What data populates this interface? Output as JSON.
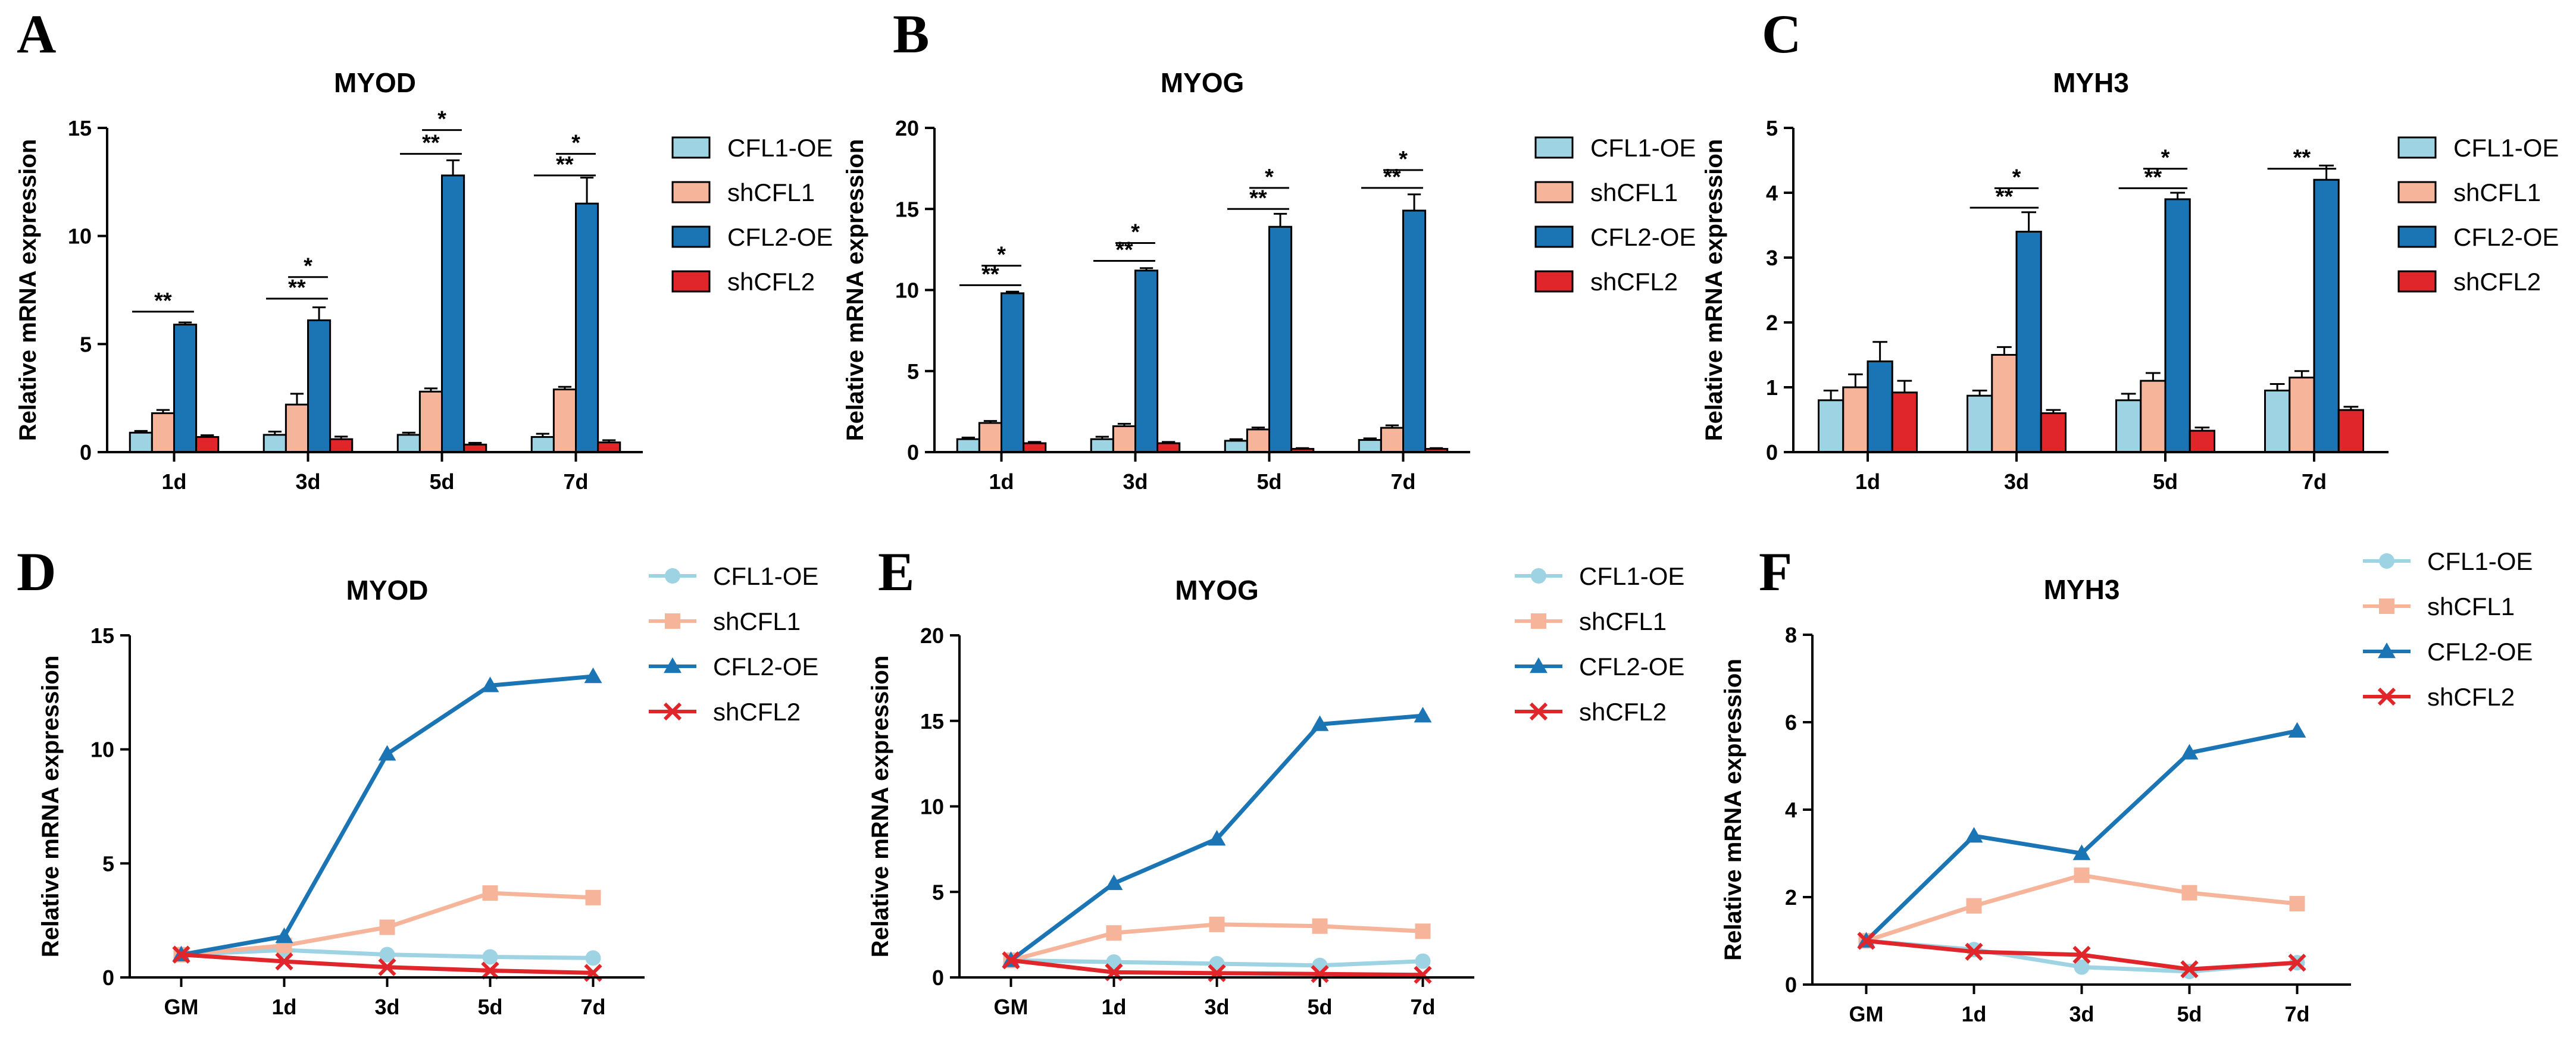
{
  "chart_data": [
    {
      "panel": "A",
      "type": "bar",
      "title": "MYOD",
      "ylabel": "Relative mRNA expression",
      "categories": [
        "1d",
        "3d",
        "5d",
        "7d"
      ],
      "ylim": [
        0,
        15
      ],
      "yticks": [
        0,
        5,
        10,
        15
      ],
      "series": [
        {
          "name": "CFL1-OE",
          "values": [
            0.9,
            0.8,
            0.8,
            0.7
          ],
          "errors": [
            0.08,
            0.15,
            0.1,
            0.15
          ],
          "color": "#9dd3e2"
        },
        {
          "name": "shCFL1",
          "values": [
            1.8,
            2.2,
            2.8,
            2.9
          ],
          "errors": [
            0.15,
            0.5,
            0.15,
            0.12
          ],
          "color": "#f6b49a"
        },
        {
          "name": "CFL2-OE",
          "values": [
            5.9,
            6.1,
            12.8,
            11.5
          ],
          "errors": [
            0.1,
            0.6,
            0.7,
            1.2
          ],
          "color": "#1b75b4"
        },
        {
          "name": "shCFL2",
          "values": [
            0.7,
            0.6,
            0.35,
            0.45
          ],
          "errors": [
            0.08,
            0.12,
            0.08,
            0.1
          ],
          "color": "#e0262a"
        }
      ],
      "annotations": [
        {
          "category": "1d",
          "from": "CFL1-OE",
          "to": "CFL2-OE",
          "level": 6.5,
          "label": "**"
        },
        {
          "category": "3d",
          "from": "CFL1-OE",
          "to": "CFL2-OE",
          "level": 7.1,
          "label": "**"
        },
        {
          "category": "3d",
          "from": "shCFL1",
          "to": "CFL2-OE",
          "level": 8.1,
          "label": "*"
        },
        {
          "category": "5d",
          "from": "CFL1-OE",
          "to": "CFL2-OE",
          "level": 13.8,
          "label": "**"
        },
        {
          "category": "5d",
          "from": "shCFL1",
          "to": "CFL2-OE",
          "level": 14.9,
          "label": "*"
        },
        {
          "category": "7d",
          "from": "CFL1-OE",
          "to": "CFL2-OE",
          "level": 12.8,
          "label": "**"
        },
        {
          "category": "7d",
          "from": "shCFL1",
          "to": "CFL2-OE",
          "level": 13.8,
          "label": "*"
        }
      ]
    },
    {
      "panel": "B",
      "type": "bar",
      "title": "MYOG",
      "ylabel": "Relative mRNA expression",
      "categories": [
        "1d",
        "3d",
        "5d",
        "7d"
      ],
      "ylim": [
        0,
        20
      ],
      "yticks": [
        0,
        5,
        10,
        15,
        20
      ],
      "series": [
        {
          "name": "CFL1-OE",
          "values": [
            0.8,
            0.8,
            0.7,
            0.75
          ],
          "errors": [
            0.1,
            0.15,
            0.1,
            0.1
          ],
          "color": "#9dd3e2"
        },
        {
          "name": "shCFL1",
          "values": [
            1.8,
            1.6,
            1.4,
            1.5
          ],
          "errors": [
            0.12,
            0.15,
            0.12,
            0.15
          ],
          "color": "#f6b49a"
        },
        {
          "name": "CFL2-OE",
          "values": [
            9.8,
            11.2,
            13.9,
            14.9
          ],
          "errors": [
            0.1,
            0.15,
            0.8,
            1.0
          ],
          "color": "#1b75b4"
        },
        {
          "name": "shCFL2",
          "values": [
            0.55,
            0.55,
            0.2,
            0.2
          ],
          "errors": [
            0.08,
            0.08,
            0.05,
            0.05
          ],
          "color": "#e0262a"
        }
      ],
      "annotations": [
        {
          "category": "1d",
          "from": "CFL1-OE",
          "to": "CFL2-OE",
          "level": 10.3,
          "label": "**"
        },
        {
          "category": "1d",
          "from": "shCFL1",
          "to": "CFL2-OE",
          "level": 11.5,
          "label": "*"
        },
        {
          "category": "3d",
          "from": "CFL1-OE",
          "to": "CFL2-OE",
          "level": 11.8,
          "label": "**"
        },
        {
          "category": "3d",
          "from": "shCFL1",
          "to": "CFL2-OE",
          "level": 12.9,
          "label": "*"
        },
        {
          "category": "5d",
          "from": "CFL1-OE",
          "to": "CFL2-OE",
          "level": 15.0,
          "label": "**"
        },
        {
          "category": "5d",
          "from": "shCFL1",
          "to": "CFL2-OE",
          "level": 16.3,
          "label": "*"
        },
        {
          "category": "7d",
          "from": "CFL1-OE",
          "to": "CFL2-OE",
          "level": 16.3,
          "label": "**"
        },
        {
          "category": "7d",
          "from": "shCFL1",
          "to": "CFL2-OE",
          "level": 17.4,
          "label": "*"
        }
      ]
    },
    {
      "panel": "C",
      "type": "bar",
      "title": "MYH3",
      "ylabel": "Relative mRNA expression",
      "categories": [
        "1d",
        "3d",
        "5d",
        "7d"
      ],
      "ylim": [
        0,
        5
      ],
      "yticks": [
        0,
        1,
        2,
        3,
        4,
        5
      ],
      "series": [
        {
          "name": "CFL1-OE",
          "values": [
            0.8,
            0.87,
            0.8,
            0.95
          ],
          "errors": [
            0.15,
            0.08,
            0.1,
            0.1
          ],
          "color": "#9dd3e2"
        },
        {
          "name": "shCFL1",
          "values": [
            1.0,
            1.5,
            1.1,
            1.15
          ],
          "errors": [
            0.2,
            0.12,
            0.12,
            0.1
          ],
          "color": "#f6b49a"
        },
        {
          "name": "CFL2-OE",
          "values": [
            1.4,
            3.4,
            3.9,
            4.2
          ],
          "errors": [
            0.3,
            0.3,
            0.1,
            0.22
          ],
          "color": "#1b75b4"
        },
        {
          "name": "shCFL2",
          "values": [
            0.92,
            0.6,
            0.33,
            0.65
          ],
          "errors": [
            0.18,
            0.05,
            0.05,
            0.05
          ],
          "color": "#e0262a"
        }
      ],
      "annotations": [
        {
          "category": "3d",
          "from": "CFL1-OE",
          "to": "CFL2-OE",
          "level": 3.77,
          "label": "**"
        },
        {
          "category": "3d",
          "from": "shCFL1",
          "to": "CFL2-OE",
          "level": 4.07,
          "label": "*"
        },
        {
          "category": "5d",
          "from": "CFL1-OE",
          "to": "CFL2-OE",
          "level": 4.07,
          "label": "**"
        },
        {
          "category": "5d",
          "from": "shCFL1",
          "to": "CFL2-OE",
          "level": 4.37,
          "label": "*"
        },
        {
          "category": "7d",
          "from": "CFL1-OE",
          "to": "CFL2-OE",
          "level": 4.37,
          "label": "**"
        }
      ]
    },
    {
      "panel": "D",
      "type": "line",
      "title": "MYOD",
      "ylabel": "Relative mRNA expression",
      "categories": [
        "GM",
        "1d",
        "3d",
        "5d",
        "7d"
      ],
      "ylim": [
        0,
        15
      ],
      "yticks": [
        0,
        5,
        10,
        15
      ],
      "series": [
        {
          "name": "CFL1-OE",
          "values": [
            1.0,
            1.2,
            1.0,
            0.9,
            0.85
          ],
          "color": "#9dd3e2",
          "marker": "circle"
        },
        {
          "name": "shCFL1",
          "values": [
            1.0,
            1.4,
            2.2,
            3.7,
            3.5
          ],
          "color": "#f6b49a",
          "marker": "square"
        },
        {
          "name": "CFL2-OE",
          "values": [
            1.0,
            1.8,
            9.8,
            12.8,
            13.2
          ],
          "color": "#1b75b4",
          "marker": "triangle"
        },
        {
          "name": "shCFL2",
          "values": [
            1.0,
            0.7,
            0.45,
            0.3,
            0.2
          ],
          "color": "#e0262a",
          "marker": "x"
        }
      ]
    },
    {
      "panel": "E",
      "type": "line",
      "title": "MYOG",
      "ylabel": "Relative mRNA expression",
      "categories": [
        "GM",
        "1d",
        "3d",
        "5d",
        "7d"
      ],
      "ylim": [
        0,
        20
      ],
      "yticks": [
        0,
        5,
        10,
        15,
        20
      ],
      "series": [
        {
          "name": "CFL1-OE",
          "values": [
            1.0,
            0.9,
            0.8,
            0.7,
            0.95
          ],
          "color": "#9dd3e2",
          "marker": "circle"
        },
        {
          "name": "shCFL1",
          "values": [
            1.0,
            2.6,
            3.1,
            3.0,
            2.7
          ],
          "color": "#f6b49a",
          "marker": "square"
        },
        {
          "name": "CFL2-OE",
          "values": [
            1.0,
            5.5,
            8.1,
            14.8,
            15.3
          ],
          "color": "#1b75b4",
          "marker": "triangle"
        },
        {
          "name": "shCFL2",
          "values": [
            1.0,
            0.3,
            0.25,
            0.2,
            0.15
          ],
          "color": "#e0262a",
          "marker": "x"
        }
      ]
    },
    {
      "panel": "F",
      "type": "line",
      "title": "MYH3",
      "ylabel": "Relative mRNA expression",
      "categories": [
        "GM",
        "1d",
        "3d",
        "5d",
        "7d"
      ],
      "ylim": [
        0,
        8
      ],
      "yticks": [
        0,
        2,
        4,
        6,
        8
      ],
      "series": [
        {
          "name": "CFL1-OE",
          "values": [
            1.0,
            0.8,
            0.4,
            0.3,
            0.5
          ],
          "color": "#9dd3e2",
          "marker": "circle"
        },
        {
          "name": "shCFL1",
          "values": [
            1.0,
            1.8,
            2.5,
            2.1,
            1.85
          ],
          "color": "#f6b49a",
          "marker": "square"
        },
        {
          "name": "CFL2-OE",
          "values": [
            1.0,
            3.4,
            3.0,
            5.3,
            5.8
          ],
          "color": "#1b75b4",
          "marker": "triangle"
        },
        {
          "name": "shCFL2",
          "values": [
            1.0,
            0.75,
            0.68,
            0.35,
            0.5
          ],
          "color": "#e0262a",
          "marker": "x"
        }
      ]
    }
  ]
}
